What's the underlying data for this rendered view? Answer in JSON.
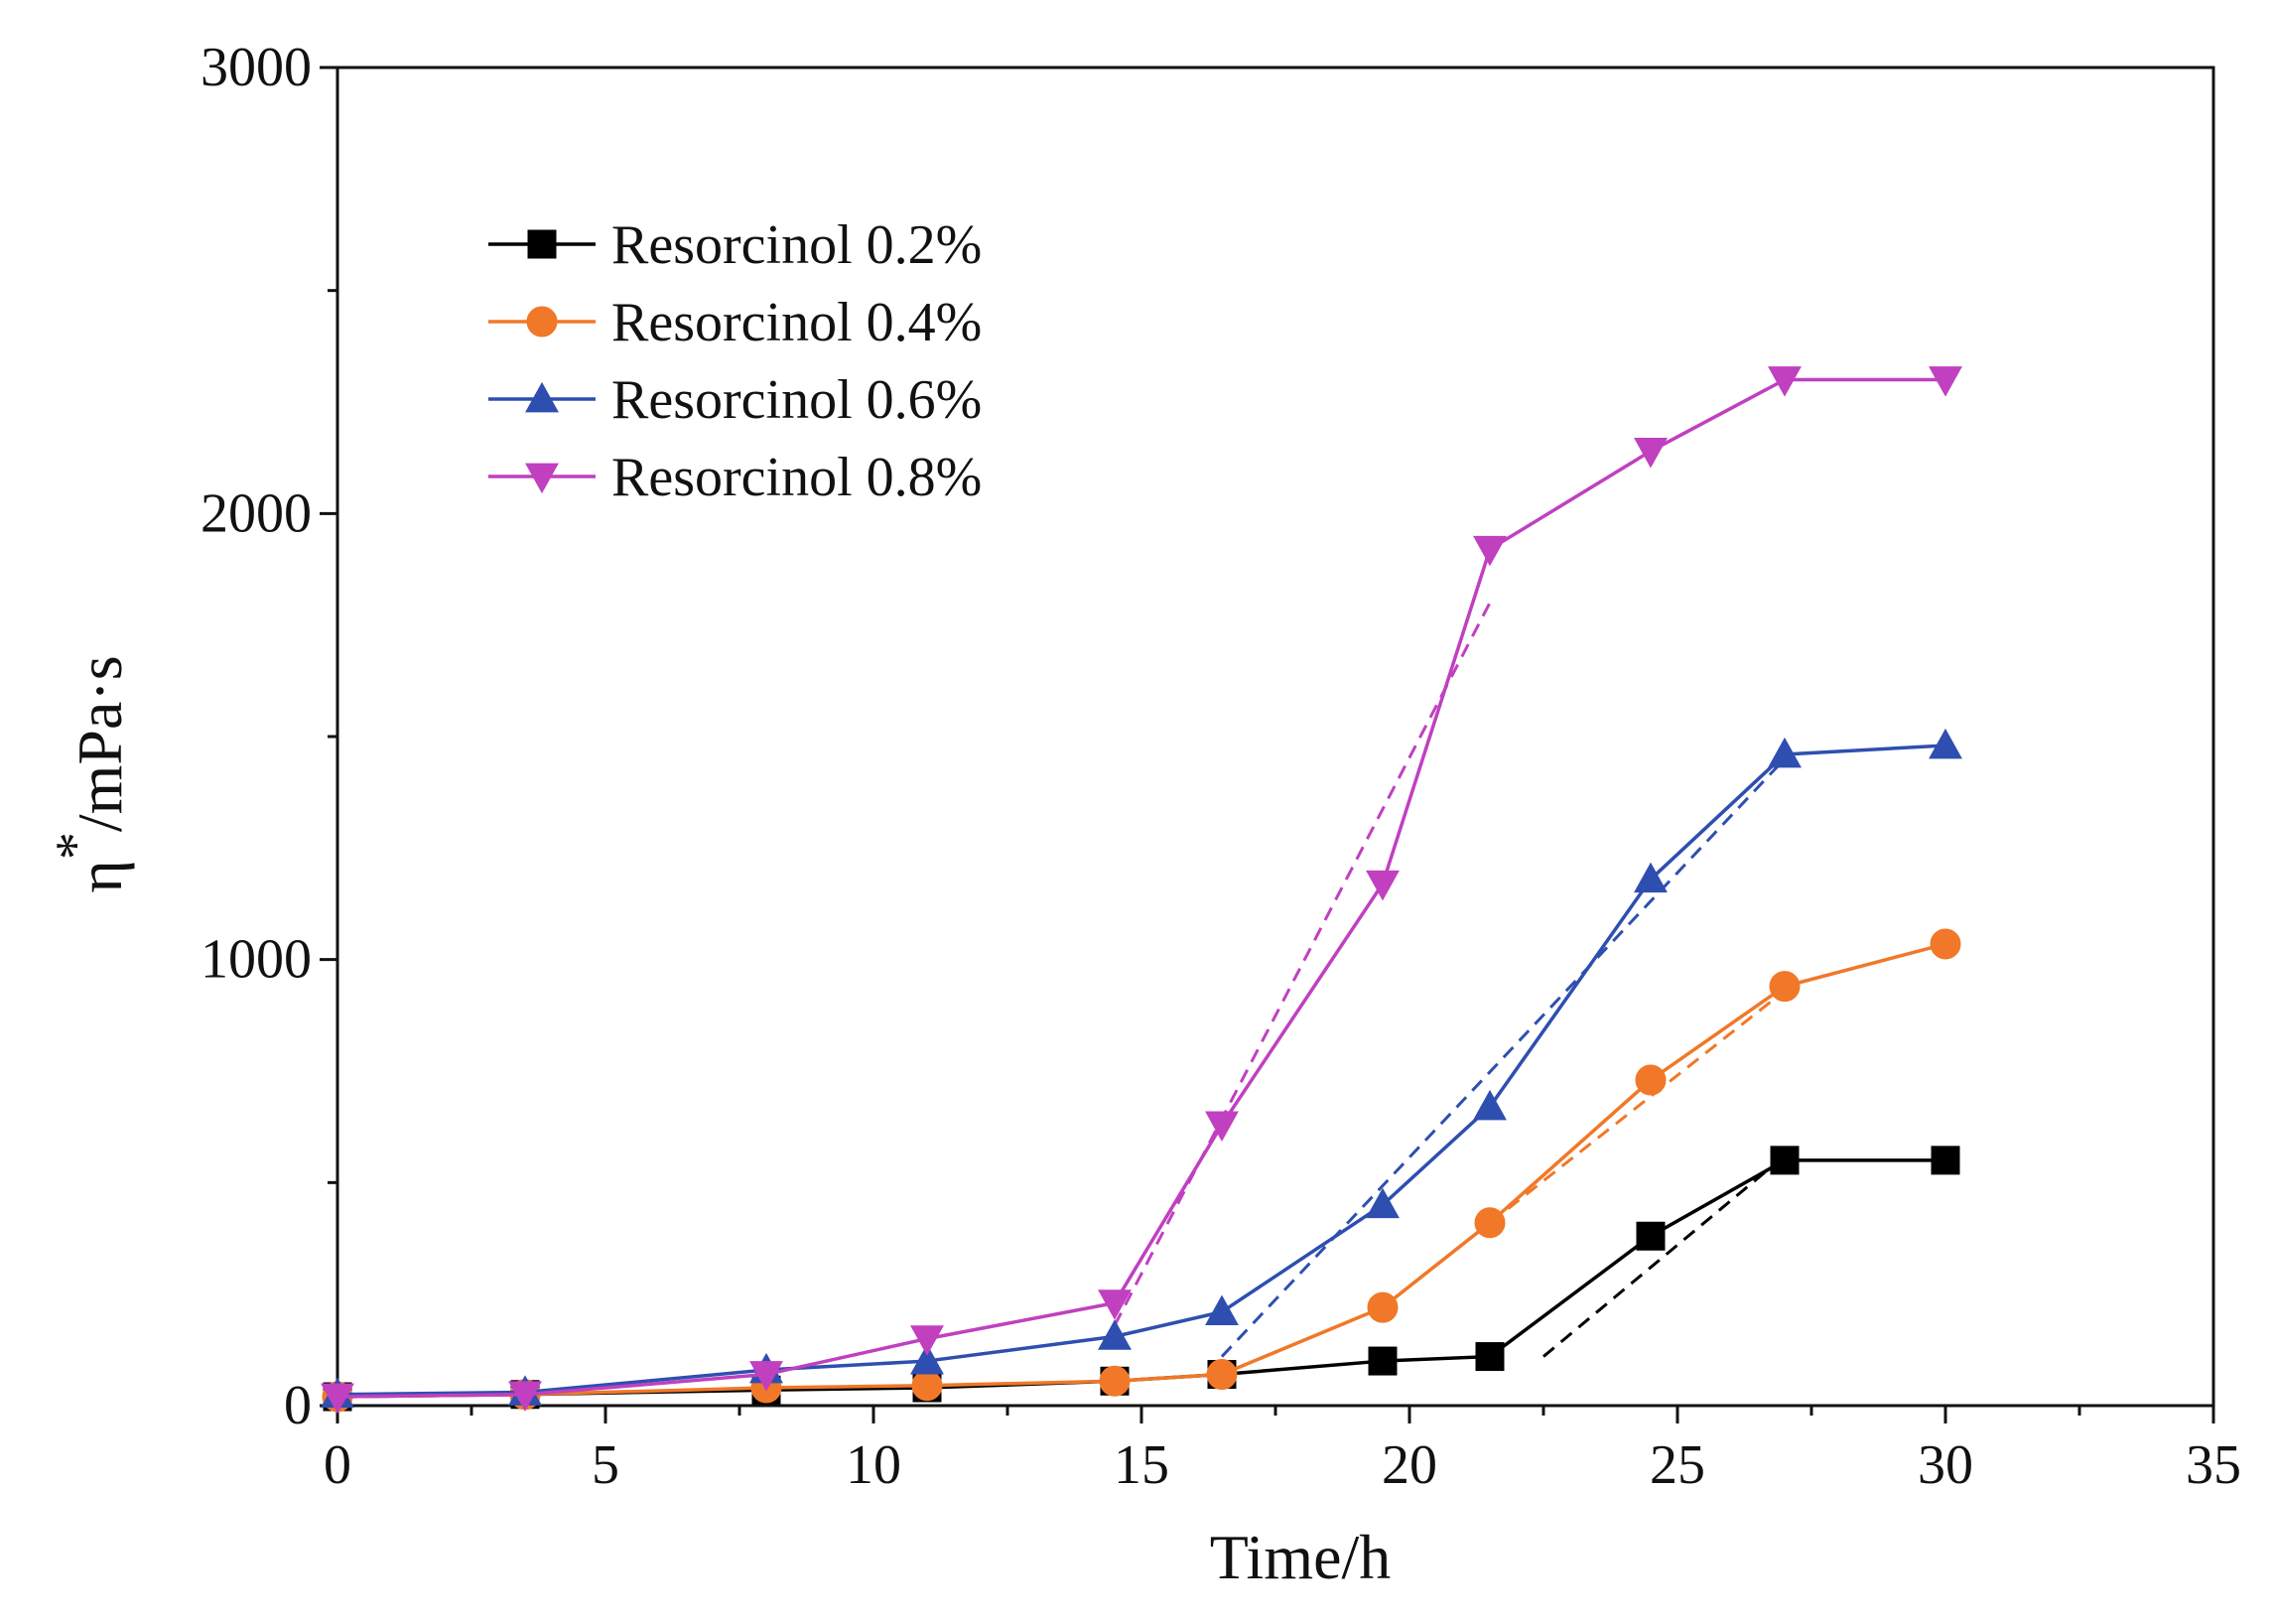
{
  "chart_data": {
    "type": "line",
    "title": "",
    "xlabel": "Time/h",
    "ylabel": "η*/mPa·s",
    "ylabel_main": "η",
    "ylabel_sup": "*",
    "ylabel_unit": "/mPa·s",
    "xlim": [
      0,
      35
    ],
    "ylim": [
      0,
      3000
    ],
    "xticks": [
      0,
      5,
      10,
      15,
      20,
      25,
      30,
      35
    ],
    "yticks": [
      0,
      1000,
      2000,
      3000
    ],
    "x": [
      0,
      3.5,
      8,
      11,
      14.5,
      16.5,
      19.5,
      21.5,
      24.5,
      27,
      30
    ],
    "series": [
      {
        "name": "Resorcinol 0.2%",
        "color": "#000000",
        "marker": "square",
        "values": [
          20,
          25,
          35,
          40,
          55,
          70,
          100,
          110,
          380,
          550,
          550
        ],
        "fit": [
          [
            22.5,
            110
          ],
          [
            27,
            560
          ]
        ]
      },
      {
        "name": "Resorcinol 0.4%",
        "color": "#f07828",
        "marker": "circle",
        "values": [
          20,
          25,
          40,
          45,
          55,
          70,
          220,
          410,
          730,
          940,
          1035
        ],
        "fit": [
          [
            19.5,
            220
          ],
          [
            27,
            930
          ]
        ]
      },
      {
        "name": "Resorcinol 0.6%",
        "color": "#2e4fb0",
        "marker": "triangle-up",
        "values": [
          25,
          30,
          80,
          100,
          155,
          210,
          450,
          670,
          1180,
          1460,
          1480
        ],
        "fit": [
          [
            16.5,
            110
          ],
          [
            27,
            1450
          ]
        ]
      },
      {
        "name": "Resorcinol 0.8%",
        "color": "#c040c0",
        "marker": "triangle-down",
        "values": [
          20,
          25,
          70,
          150,
          230,
          630,
          1170,
          1920,
          2140,
          2300,
          2300
        ],
        "fit": [
          [
            14.5,
            180
          ],
          [
            21.5,
            1800
          ]
        ]
      }
    ],
    "legend_position": "top-left",
    "grid": false
  }
}
